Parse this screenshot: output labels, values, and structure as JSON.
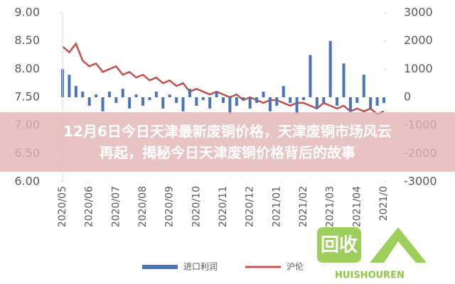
{
  "chart_data": {
    "type": "bar-line",
    "title": [
      "12月6日今日天津最新废铜价格，天津废铜市场风云",
      "再起，揭秘今日天津废铜价格背后的故事"
    ],
    "categories": [
      "2020/05",
      null,
      null,
      null,
      "2020/06",
      null,
      null,
      null,
      "2020/07",
      null,
      null,
      null,
      "2020/08",
      null,
      null,
      null,
      "2020/09",
      null,
      null,
      null,
      "2020/10",
      null,
      null,
      null,
      "2020/11",
      null,
      null,
      null,
      "2020/12",
      null,
      null,
      null,
      "2021/01",
      null,
      null,
      null,
      "2021/02",
      null,
      null,
      null,
      "2021/03",
      null,
      null,
      null,
      "2021/04",
      null,
      null,
      null,
      "2021/0"
    ],
    "series": [
      {
        "name": "进口利润",
        "type": "bar",
        "axis": "y2",
        "color": "#4a74b5",
        "values": [
          1000,
          800,
          400,
          200,
          -300,
          100,
          -500,
          200,
          -200,
          300,
          -400,
          100,
          -300,
          -100,
          200,
          -400,
          100,
          -200,
          -500,
          300,
          -300,
          -100,
          -400,
          200,
          -200,
          -600,
          -300,
          -100,
          -400,
          -200,
          200,
          -500,
          -300,
          400,
          -200,
          -600,
          -100,
          1500,
          -400,
          -200,
          2000,
          -300,
          1200,
          -500,
          -200,
          800,
          -400,
          -300,
          -200
        ]
      },
      {
        "name": "沪伦",
        "type": "line",
        "axis": "y",
        "color": "#c0504d",
        "values": [
          8.4,
          8.3,
          8.45,
          8.15,
          8.05,
          8.1,
          7.95,
          8.0,
          8.05,
          7.9,
          7.95,
          7.85,
          7.9,
          7.8,
          7.85,
          7.75,
          7.8,
          7.7,
          7.75,
          7.6,
          7.65,
          7.6,
          7.55,
          7.6,
          7.55,
          7.5,
          7.55,
          7.45,
          7.5,
          7.45,
          7.4,
          7.45,
          7.45,
          7.4,
          7.35,
          7.4,
          7.4,
          7.35,
          7.3,
          7.4,
          7.35,
          7.3,
          7.35,
          7.25,
          7.3,
          7.25,
          7.3,
          7.2,
          7.25
        ]
      }
    ],
    "ylim": [
      6,
      9
    ],
    "yticks": [
      {
        "value": 6,
        "label": "6.00"
      },
      {
        "value": 6.5,
        "label": "6.50"
      },
      {
        "value": 7,
        "label": "7.00"
      },
      {
        "value": 7.5,
        "label": "7.50"
      },
      {
        "value": 8,
        "label": "8.00"
      },
      {
        "value": 8.5,
        "label": "8.50"
      },
      {
        "value": 9,
        "label": "9.00"
      }
    ],
    "y2lim": [
      -3000,
      3000
    ],
    "y2ticks": [
      -3000,
      -2000,
      -1000,
      0,
      1000,
      2000,
      3000
    ]
  },
  "watermark": {
    "badge": "回收",
    "brand": "HUISHOUREN"
  }
}
